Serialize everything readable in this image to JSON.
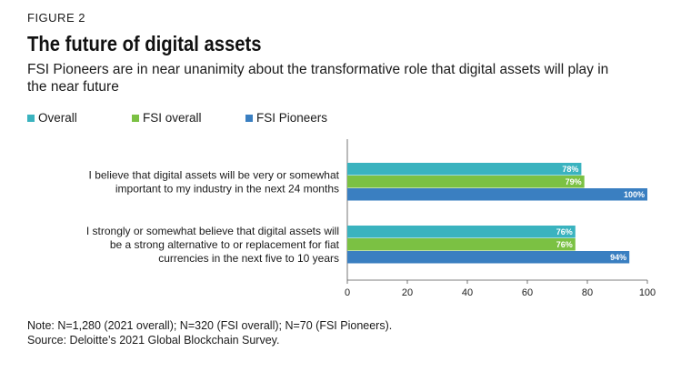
{
  "figure_label": "FIGURE 2",
  "title": "The future of digital assets",
  "subtitle": "FSI Pioneers are in near unanimity about the transformative role that digital assets will play in the near future",
  "note": "Note:  N=1,280 (2021 overall); N=320 (FSI overall); N=70 (FSI Pioneers).",
  "source": "Source: Deloitte’s 2021 Global Blockchain Survey.",
  "chart_data": {
    "type": "bar",
    "orientation": "horizontal",
    "categories": [
      [
        "I believe that digital assets will be very or somewhat",
        "important to my industry in the next 24 months"
      ],
      [
        "I strongly or somewhat believe that digital assets will",
        "be a strong alternative to or replacement for fiat",
        "currencies in the next five to 10 years"
      ]
    ],
    "series": [
      {
        "name": "Overall",
        "color": "#3ab3bf",
        "values": [
          78,
          76
        ]
      },
      {
        "name": "FSI overall",
        "color": "#7bc143",
        "values": [
          79,
          76
        ]
      },
      {
        "name": "FSI Pioneers",
        "color": "#3a7fc1",
        "values": [
          100,
          94
        ]
      }
    ],
    "value_suffix": "%",
    "xlim": [
      0,
      100
    ],
    "xticks": [
      0,
      20,
      40,
      60,
      80,
      100
    ],
    "legend_position": "top-left",
    "grid": false
  }
}
